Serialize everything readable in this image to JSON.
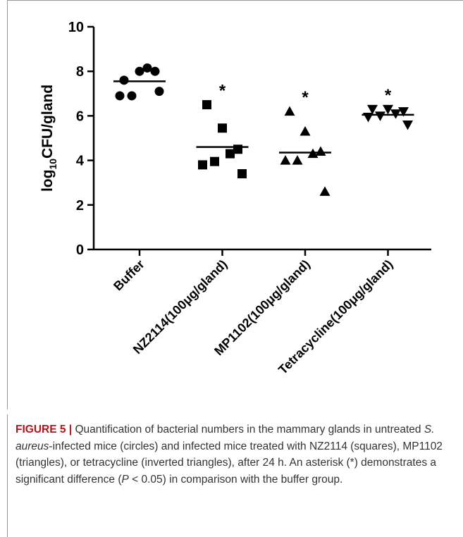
{
  "chart_data": {
    "type": "dot",
    "y_label": {
      "parts": [
        "log",
        "10",
        "CFU/gland"
      ]
    },
    "categories": [
      "Buffer",
      "NZ2114(100μg/gland)",
      "MP1102(100μg/gland)",
      "Tetracycline(100μg/gland)"
    ],
    "values": [
      [
        7.6,
        8.0,
        8.0,
        8.15,
        6.9,
        6.9,
        7.1
      ],
      [
        6.5,
        5.45,
        4.5,
        4.3,
        3.95,
        3.8,
        3.4
      ],
      [
        6.2,
        5.3,
        4.4,
        4.3,
        4.0,
        4.0,
        2.6
      ],
      [
        6.3,
        6.3,
        6.2,
        6.1,
        6.0,
        5.95,
        5.6
      ]
    ],
    "markers": [
      "circle",
      "square",
      "triangle",
      "triangle-down"
    ],
    "medians": [
      7.55,
      4.6,
      4.35,
      6.05
    ],
    "color": "#000000",
    "annotations": [
      {
        "category": 1,
        "text": "*"
      },
      {
        "category": 2,
        "text": "*"
      },
      {
        "category": 3,
        "text": "*"
      }
    ],
    "ylim": [
      0,
      10
    ],
    "yticks": [
      0,
      2,
      4,
      6,
      8,
      10
    ]
  },
  "caption": [
    {
      "text": "FIGURE 5 |",
      "style": "bold"
    },
    {
      "text": " Quantification of bacterial numbers in the mammary glands in untreated ",
      "style": "normal"
    },
    {
      "text": "S. aureus",
      "style": "italic"
    },
    {
      "text": "-infected mice (circles) and infected mice treated with NZ2114 (squares), MP1102 (triangles), or tetracycline (inverted triangles), after 24 h. An asterisk (*) demonstrates a significant difference (",
      "style": "normal"
    },
    {
      "text": "P",
      "style": "italic"
    },
    {
      "text": " < 0.05) in comparison with the buffer group.",
      "style": "normal"
    }
  ]
}
